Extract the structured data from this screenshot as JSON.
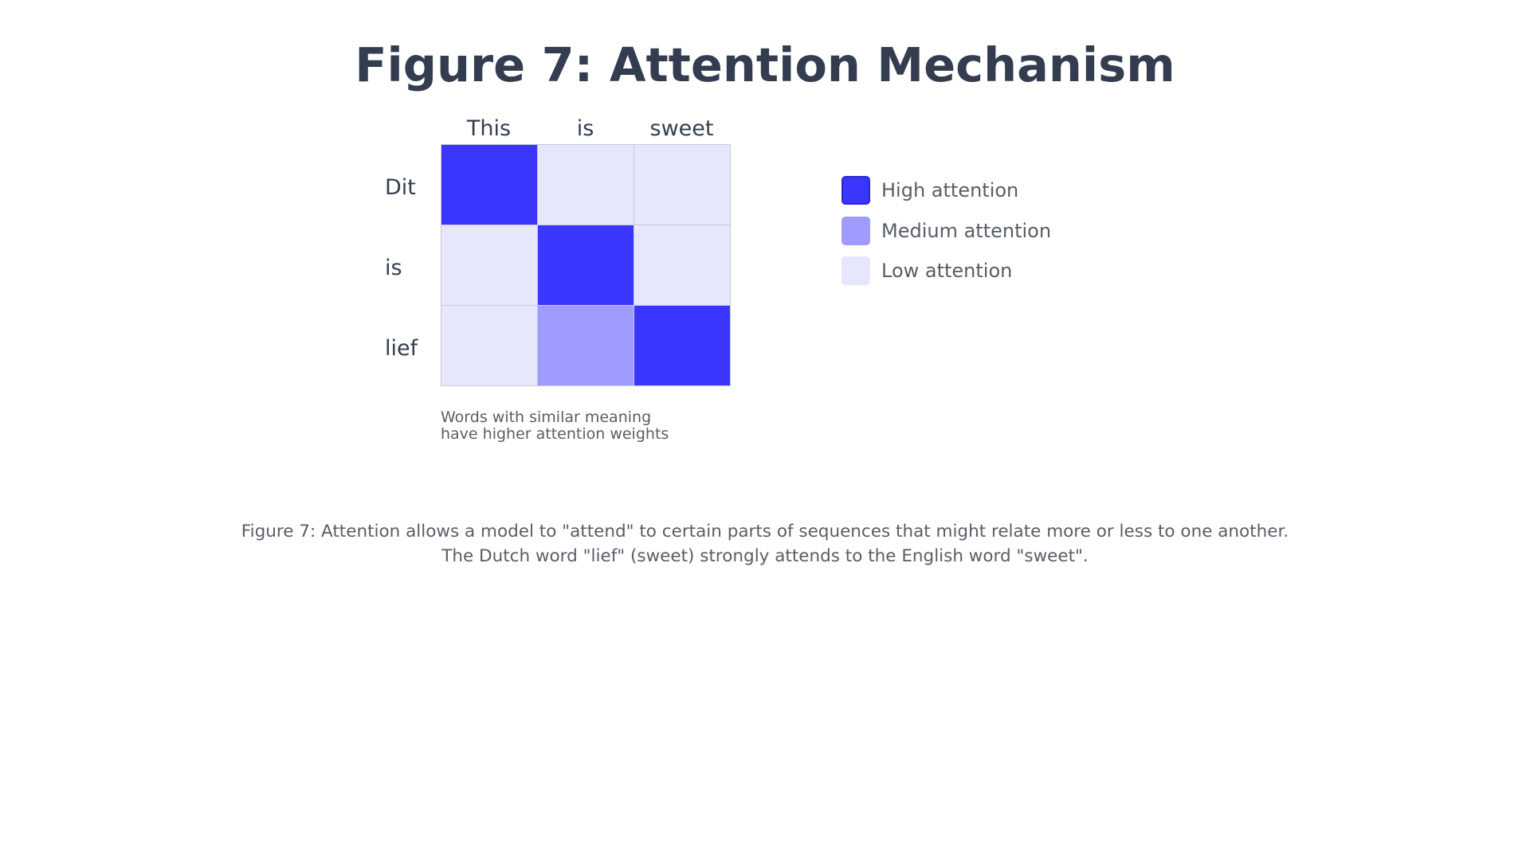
{
  "title": "Figure 7: Attention Mechanism",
  "matrix": {
    "columns": [
      "This",
      "is",
      "sweet"
    ],
    "rows": [
      "Dit",
      "is",
      "lief"
    ],
    "levels": [
      [
        "high",
        "low",
        "low"
      ],
      [
        "low",
        "high",
        "low"
      ],
      [
        "low",
        "medium",
        "high"
      ]
    ]
  },
  "colors": {
    "high": "#3a36fd",
    "medium": "#9e9cff",
    "low": "#e6e6fc",
    "high_border": "#2a26d0"
  },
  "note": {
    "line1": "Words with similar meaning",
    "line2": "have higher attention weights"
  },
  "legend": [
    {
      "level": "high",
      "label": "High attention"
    },
    {
      "level": "medium",
      "label": "Medium attention"
    },
    {
      "level": "low",
      "label": "Low attention"
    }
  ],
  "caption": {
    "line1": "Figure 7: Attention allows a model to \"attend\" to certain parts of sequences that might relate more or less to one another.",
    "line2": "The Dutch word \"lief\" (sweet) strongly attends to the English word \"sweet\"."
  }
}
